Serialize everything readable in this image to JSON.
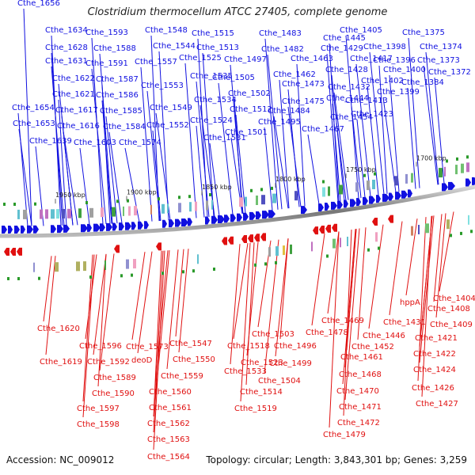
{
  "title": "Clostridium thermocellum ATCC 27405, complete genome",
  "footer": {
    "accession": "Accession: NC_009012",
    "topology": "Topology: circular; Length: 3,843,301 bp; Genes: 3,259"
  },
  "ruler_ticks": [
    "1950 kbp",
    "1900 kbp",
    "1850 kbp",
    "1800 kbp",
    "1750 kbp",
    "1700 kbp"
  ],
  "colors": {
    "forward": "#1010e0",
    "reverse": "#e01010",
    "backbone": "#888888"
  },
  "forward_labels": [
    "Cthe_1656",
    "Cthe_1634",
    "Cthe_1628",
    "Cthe_1631",
    "Cthe_1622",
    "Cthe_1621",
    "Cthe_1654",
    "Cthe_1617",
    "Cthe_1653",
    "Cthe_1616",
    "Cthe_1639",
    "Cthe_1603",
    "Cthe_1593",
    "Cthe_1588",
    "Cthe_1591",
    "Cthe_1587",
    "Cthe_1586",
    "Cthe_1585",
    "Cthe_1584",
    "Cthe_1574",
    "Cthe_1548",
    "Cthe_1544",
    "Cthe_1557",
    "Cthe_1553",
    "Cthe_1549",
    "Cthe_1552",
    "Cthe_1515",
    "Cthe_1525",
    "Cthe_1535",
    "Cthe_1534",
    "Cthe_1524",
    "Cthe_1531",
    "Cthe_1513",
    "Cthe_1497",
    "Cthe_1505",
    "Cthe_1502",
    "Cthe_1512",
    "Cthe_1501",
    "Cthe_1483",
    "Cthe_1482",
    "Cthe_1463",
    "Cthe_1462",
    "Cthe_1473",
    "Cthe_1475",
    "Cthe_1484",
    "Cthe_1495",
    "Cthe_1445",
    "Cthe_1429",
    "Cthe_1428",
    "Cthe_1432",
    "Cthe_1444",
    "Cthe_1454",
    "Cthe_1467",
    "Cthe_1405",
    "Cthe_1417",
    "Cthe_1423",
    "Cthe_1413",
    "Cthe_1402",
    "Cthe_1399",
    "Cthe_1398",
    "Cthe_1396",
    "Cthe_1400",
    "Cthe_1375",
    "Cthe_1374",
    "Cthe_1373",
    "Cthe_1384",
    "Cthe_1372"
  ],
  "reverse_labels": [
    "Cthe_1620",
    "Cthe_1619",
    "Cthe_1596",
    "Cthe_1592",
    "Cthe_1589",
    "Cthe_1590",
    "Cthe_1597",
    "Cthe_1598",
    "Cthe_1573",
    "deoD",
    "Cthe_1547",
    "Cthe_1550",
    "Cthe_1559",
    "Cthe_1560",
    "Cthe_1561",
    "Cthe_1562",
    "Cthe_1563",
    "Cthe_1564",
    "Cthe_1503",
    "Cthe_1518",
    "Cthe_1496",
    "Cthe_1533",
    "Cthe_1523",
    "Cthe_1499",
    "Cthe_1504",
    "Cthe_1514",
    "Cthe_1519",
    "Cthe_1469",
    "Cthe_1478",
    "Cthe_1446",
    "Cthe_1452",
    "Cthe_1461",
    "Cthe_1468",
    "Cthe_1470",
    "Cthe_1471",
    "Cthe_1472",
    "Cthe_1479",
    "hppA",
    "Cthe_1431",
    "Cthe_1404",
    "Cthe_1408",
    "Cthe_1409",
    "Cthe_1421",
    "Cthe_1422",
    "Cthe_1424",
    "Cthe_1426",
    "Cthe_1427"
  ]
}
